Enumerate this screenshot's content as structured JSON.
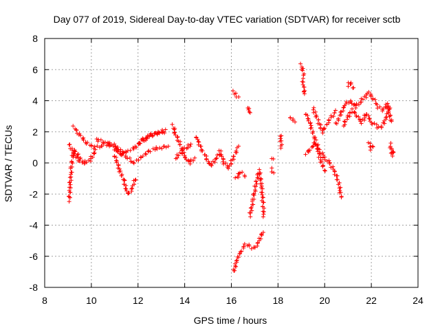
{
  "chart_data": {
    "type": "scatter",
    "title": "Day 077 of 2019, Sidereal Day-to-day VTEC variation (SDTVAR) for receiver sctb",
    "xlabel": "GPS time / hours",
    "ylabel": "SDTVAR / TECUs",
    "xlim": [
      8,
      24
    ],
    "ylim": [
      -8,
      8
    ],
    "xticks": [
      8,
      10,
      12,
      14,
      16,
      18,
      20,
      22,
      24
    ],
    "yticks": [
      -8,
      -6,
      -4,
      -2,
      0,
      2,
      4,
      6,
      8
    ],
    "grid": true,
    "marker": "+",
    "series": [
      {
        "name": "SDTVAR",
        "color": "#ff0000",
        "segments": [
          {
            "x": [
              9.05,
              9.1,
              9.15,
              9.2,
              9.3,
              9.5,
              9.7
            ],
            "y": [
              -2.4,
              -1.2,
              -0.3,
              0.4,
              0.8,
              0.3,
              0.1
            ]
          },
          {
            "x": [
              9.05,
              9.2,
              9.4,
              9.6,
              9.9,
              10.2
            ],
            "y": [
              1.2,
              0.7,
              0.2,
              0.0,
              0.1,
              0.8
            ]
          },
          {
            "x": [
              9.25,
              9.5,
              9.8,
              10.1,
              10.4,
              10.7,
              11.0,
              11.3
            ],
            "y": [
              2.3,
              1.8,
              1.3,
              1.0,
              1.1,
              1.2,
              1.0,
              0.5
            ]
          },
          {
            "x": [
              10.2,
              10.4,
              10.6,
              10.9,
              11.2,
              11.5,
              11.8,
              12.1,
              12.4,
              12.7,
              13.0,
              13.3
            ],
            "y": [
              1.5,
              1.4,
              1.3,
              1.2,
              0.9,
              0.4,
              0.0,
              0.3,
              0.7,
              0.9,
              1.0,
              1.1
            ]
          },
          {
            "x": [
              11.0,
              11.2,
              11.4,
              11.55,
              11.7,
              11.9
            ],
            "y": [
              0.5,
              -0.4,
              -1.2,
              -2.0,
              -1.8,
              -1.0
            ]
          },
          {
            "x": [
              11.0,
              11.3,
              11.6,
              11.9,
              12.2,
              12.5,
              12.8,
              13.1
            ],
            "y": [
              0.9,
              0.6,
              0.8,
              1.0,
              1.5,
              1.8,
              1.9,
              2.0
            ]
          },
          {
            "x": [
              12.0,
              12.3,
              12.6,
              12.9,
              13.2
            ],
            "y": [
              1.2,
              1.5,
              1.8,
              2.0,
              2.1
            ]
          },
          {
            "x": [
              13.5,
              13.6,
              13.8,
              14.0,
              14.2,
              14.4
            ],
            "y": [
              2.4,
              1.9,
              1.2,
              0.4,
              0.0,
              0.3
            ]
          },
          {
            "x": [
              13.6,
              13.8,
              14.0,
              14.3
            ],
            "y": [
              0.3,
              0.6,
              0.9,
              1.2
            ]
          },
          {
            "x": [
              14.5,
              14.7,
              14.9,
              15.1,
              15.3,
              15.5
            ],
            "y": [
              1.7,
              0.9,
              0.4,
              -0.2,
              0.2,
              0.6
            ]
          },
          {
            "x": [
              15.5,
              15.7,
              15.9,
              16.1,
              16.3
            ],
            "y": [
              0.8,
              0.0,
              -0.3,
              0.4,
              1.0
            ]
          },
          {
            "x": [
              16.1,
              16.2,
              16.3,
              16.45,
              16.6,
              16.8,
              17.0,
              17.2,
              17.35
            ],
            "y": [
              -7.0,
              -6.4,
              -6.0,
              -5.6,
              -5.2,
              -5.4,
              -5.5,
              -5.0,
              -4.4
            ]
          },
          {
            "x": [
              16.1,
              16.2,
              16.3
            ],
            "y": [
              4.6,
              4.4,
              4.2
            ]
          },
          {
            "x": [
              16.7,
              16.75,
              16.8
            ],
            "y": [
              3.6,
              3.4,
              3.2
            ]
          },
          {
            "x": [
              16.8,
              16.9,
              17.0,
              17.1,
              17.2,
              17.3,
              17.4
            ],
            "y": [
              -3.4,
              -2.6,
              -1.8,
              -1.0,
              -0.5,
              -1.6,
              -3.4
            ]
          },
          {
            "x": [
              16.2,
              16.4,
              16.6
            ],
            "y": [
              -1.0,
              -0.6,
              -0.8
            ]
          },
          {
            "x": [
              17.7,
              17.8
            ],
            "y": [
              -0.4,
              -0.7
            ]
          },
          {
            "x": [
              17.75,
              17.8
            ],
            "y": [
              0.3,
              0.2
            ]
          },
          {
            "x": [
              18.1,
              18.15
            ],
            "y": [
              1.8,
              1.0
            ]
          },
          {
            "x": [
              18.5,
              18.6,
              18.7
            ],
            "y": [
              2.9,
              2.8,
              2.7
            ]
          },
          {
            "x": [
              19.0,
              19.05,
              19.1
            ],
            "y": [
              6.3,
              6.0,
              5.7
            ]
          },
          {
            "x": [
              19.05,
              19.1,
              19.15
            ],
            "y": [
              5.4,
              4.8,
              4.4
            ]
          },
          {
            "x": [
              19.2,
              19.4,
              19.6,
              19.8,
              20.0
            ],
            "y": [
              3.2,
              2.4,
              1.4,
              0.3,
              -0.5
            ]
          },
          {
            "x": [
              19.2,
              19.4,
              19.6,
              19.8,
              20.0,
              20.2,
              20.4,
              20.6,
              20.7
            ],
            "y": [
              0.6,
              0.9,
              1.3,
              0.8,
              0.3,
              0.0,
              -0.5,
              -1.2,
              -2.2
            ]
          },
          {
            "x": [
              19.5,
              19.7,
              19.9,
              20.1,
              20.3,
              20.5
            ],
            "y": [
              3.5,
              2.8,
              2.0,
              2.5,
              3.0,
              3.3
            ]
          },
          {
            "x": [
              20.5,
              20.7,
              20.9,
              21.1,
              21.3,
              21.5,
              21.7,
              21.9,
              22.1,
              22.3,
              22.5,
              22.7,
              22.85
            ],
            "y": [
              2.5,
              3.2,
              3.8,
              4.0,
              3.6,
              3.9,
              4.2,
              4.5,
              4.1,
              3.6,
              3.4,
              3.8,
              2.6
            ]
          },
          {
            "x": [
              20.8,
              21.0,
              21.2,
              21.4,
              21.6,
              21.8,
              22.0,
              22.2,
              22.4,
              22.6,
              22.8
            ],
            "y": [
              2.4,
              3.0,
              3.4,
              3.0,
              2.6,
              3.2,
              2.6,
              2.4,
              2.2,
              2.8,
              3.6
            ]
          },
          {
            "x": [
              21.0,
              21.1,
              21.2
            ],
            "y": [
              5.0,
              5.2,
              4.8
            ]
          },
          {
            "x": [
              21.9,
              22.0,
              22.1
            ],
            "y": [
              1.3,
              0.9,
              1.1
            ]
          },
          {
            "x": [
              22.8,
              22.85,
              22.9,
              22.95
            ],
            "y": [
              1.2,
              0.9,
              0.5,
              0.8
            ]
          }
        ]
      }
    ]
  }
}
